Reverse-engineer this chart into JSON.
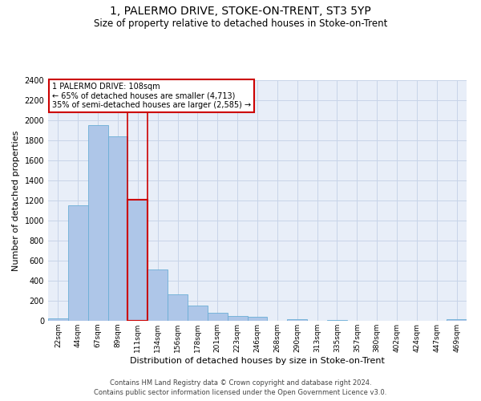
{
  "title": "1, PALERMO DRIVE, STOKE-ON-TRENT, ST3 5YP",
  "subtitle": "Size of property relative to detached houses in Stoke-on-Trent",
  "xlabel": "Distribution of detached houses by size in Stoke-on-Trent",
  "ylabel": "Number of detached properties",
  "categories": [
    "22sqm",
    "44sqm",
    "67sqm",
    "89sqm",
    "111sqm",
    "134sqm",
    "156sqm",
    "178sqm",
    "201sqm",
    "223sqm",
    "246sqm",
    "268sqm",
    "290sqm",
    "313sqm",
    "335sqm",
    "357sqm",
    "380sqm",
    "402sqm",
    "424sqm",
    "447sqm",
    "469sqm"
  ],
  "values": [
    28,
    1150,
    1950,
    1840,
    1210,
    510,
    265,
    155,
    80,
    48,
    40,
    0,
    20,
    0,
    12,
    0,
    0,
    0,
    0,
    0,
    18
  ],
  "bar_color": "#aec6e8",
  "bar_edge_color": "#6baed6",
  "highlight_bar_index": 4,
  "highlight_color": "#cc0000",
  "annotation_title": "1 PALERMO DRIVE: 108sqm",
  "annotation_line1": "← 65% of detached houses are smaller (4,713)",
  "annotation_line2": "35% of semi-detached houses are larger (2,585) →",
  "annotation_box_color": "#cc0000",
  "ylim": [
    0,
    2400
  ],
  "yticks": [
    0,
    200,
    400,
    600,
    800,
    1000,
    1200,
    1400,
    1600,
    1800,
    2000,
    2200,
    2400
  ],
  "grid_color": "#c8d4e8",
  "bg_color": "#e8eef8",
  "footer1": "Contains HM Land Registry data © Crown copyright and database right 2024.",
  "footer2": "Contains public sector information licensed under the Open Government Licence v3.0.",
  "title_fontsize": 10,
  "subtitle_fontsize": 8.5,
  "xlabel_fontsize": 8,
  "ylabel_fontsize": 8
}
